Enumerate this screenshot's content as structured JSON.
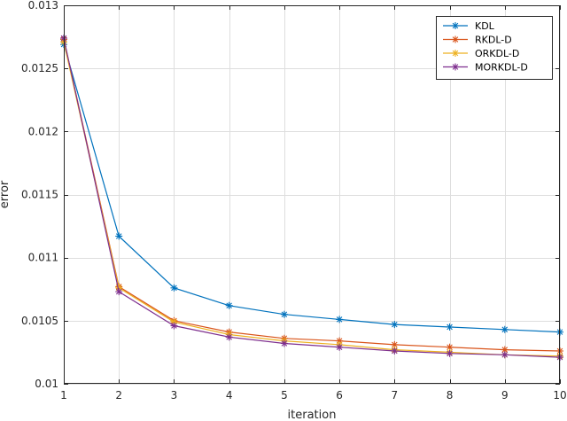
{
  "chart_data": {
    "type": "line",
    "title": "",
    "xlabel": "iteration",
    "ylabel": "error",
    "x": [
      1,
      2,
      3,
      4,
      5,
      6,
      7,
      8,
      9,
      10
    ],
    "xlim": [
      1,
      10
    ],
    "ylim": [
      0.01,
      0.013
    ],
    "xticks": [
      "1",
      "2",
      "3",
      "4",
      "5",
      "6",
      "7",
      "8",
      "9",
      "10"
    ],
    "yticks": [
      "0.01",
      "0.0105",
      "0.011",
      "0.0115",
      "0.012",
      "0.0125",
      "0.013"
    ],
    "ytick_values": [
      0.01,
      0.0105,
      0.011,
      0.0115,
      0.012,
      0.0125,
      0.013
    ],
    "grid": true,
    "legend_position": "top-right",
    "marker": "asterisk",
    "series": [
      {
        "name": "KDL",
        "color": "#0072BD",
        "values": [
          0.01269,
          0.01117,
          0.01076,
          0.01062,
          0.01055,
          0.01051,
          0.01047,
          0.01045,
          0.01043,
          0.01041
        ]
      },
      {
        "name": "RKDL-D",
        "color": "#D95319",
        "values": [
          0.01273,
          0.01077,
          0.0105,
          0.01041,
          0.01036,
          0.01034,
          0.01031,
          0.01029,
          0.01027,
          0.01026
        ]
      },
      {
        "name": "ORKDL-D",
        "color": "#EDB120",
        "values": [
          0.01271,
          0.01076,
          0.01049,
          0.01039,
          0.01034,
          0.01031,
          0.01027,
          0.01025,
          0.01023,
          0.01022
        ]
      },
      {
        "name": "MORKDL-D",
        "color": "#7E2F8E",
        "values": [
          0.01274,
          0.01073,
          0.01046,
          0.01037,
          0.01032,
          0.01029,
          0.01026,
          0.01024,
          0.01023,
          0.01021
        ]
      }
    ]
  }
}
